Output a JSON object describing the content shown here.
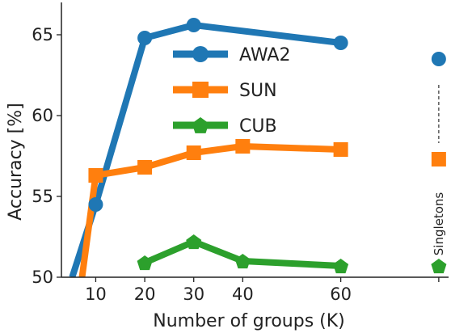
{
  "chart_data": {
    "type": "line",
    "xlabel": "Number of groups (K)",
    "ylabel": "Accuracy [%]",
    "xlim": [
      3,
      82
    ],
    "ylim": [
      50,
      67
    ],
    "x_ticks": [
      10,
      20,
      30,
      40,
      60
    ],
    "y_ticks": [
      50,
      55,
      60,
      65
    ],
    "grid": false,
    "legend_position": "top-center",
    "series": [
      {
        "name": "AWA2",
        "color": "#1f77b4",
        "marker": "circle",
        "x": [
          5.2,
          10,
          20,
          30,
          60
        ],
        "y": [
          50.0,
          54.5,
          64.8,
          65.6,
          64.5
        ],
        "singleton": 63.5
      },
      {
        "name": "SUN",
        "color": "#ff7f0e",
        "marker": "square",
        "x": [
          7.2,
          10,
          20,
          30,
          40,
          60
        ],
        "y": [
          50.0,
          56.3,
          56.8,
          57.7,
          58.1,
          57.9
        ],
        "singleton": 57.3
      },
      {
        "name": "CUB",
        "color": "#2ca02c",
        "marker": "pentagon",
        "x": [
          20,
          30,
          40,
          60
        ],
        "y": [
          50.9,
          52.2,
          51.0,
          50.7
        ],
        "singleton": 50.7
      }
    ],
    "singleton_x": 80,
    "annotation": "Singletons"
  }
}
